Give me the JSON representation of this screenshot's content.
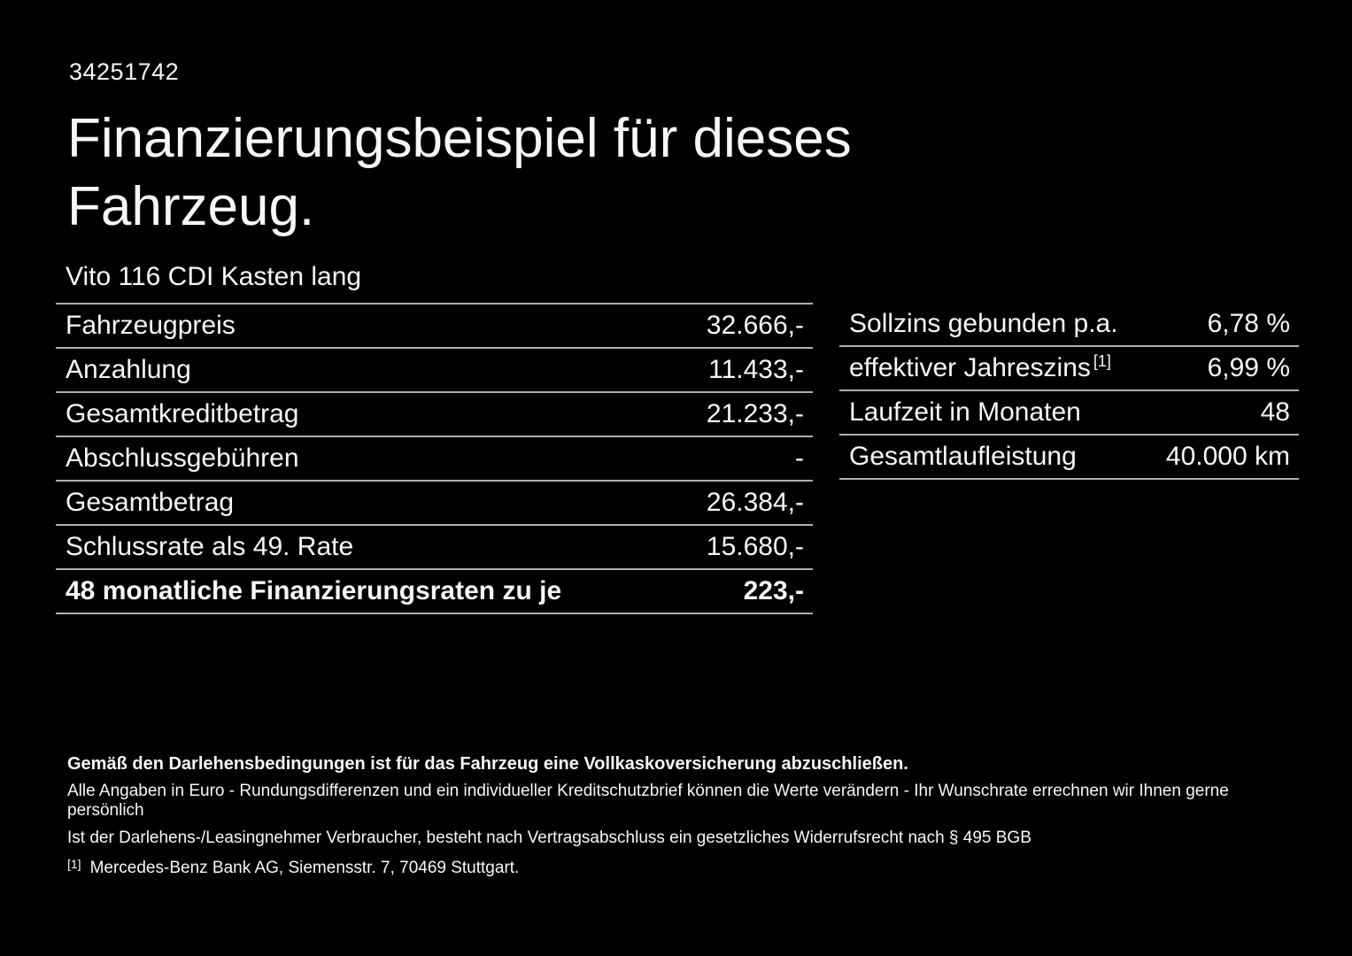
{
  "doc_id": "34251742",
  "title": {
    "line1": "Finanzierungsbeispiel für dieses",
    "line2": "Fahrzeug."
  },
  "vehicle_name": "Vito 116 CDI Kasten lang",
  "finance_table": {
    "rows": [
      {
        "label": "Fahrzeugpreis",
        "value": "32.666,-"
      },
      {
        "label": "Anzahlung",
        "value": "11.433,-"
      },
      {
        "label": "Gesamtkreditbetrag",
        "value": "21.233,-"
      },
      {
        "label": "Abschlussgebühren",
        "value": "-"
      },
      {
        "label": "Gesamtbetrag",
        "value": "26.384,-"
      },
      {
        "label": "Schlussrate als 49. Rate",
        "value": "15.680,-"
      },
      {
        "label": "48 monatliche Finanzierungsraten zu je",
        "value": "223,-"
      }
    ]
  },
  "terms_table": {
    "rows": [
      {
        "label": "Sollzins gebunden p.a.",
        "sup": "",
        "value": "6,78 %"
      },
      {
        "label": "effektiver Jahreszins",
        "sup": "[1]",
        "value": "6,99 %"
      },
      {
        "label": "Laufzeit in Monaten",
        "sup": "",
        "value": "48"
      },
      {
        "label": "Gesamtlaufleistung",
        "sup": "",
        "value": "40.000 km"
      }
    ]
  },
  "footer": {
    "line1": "Gemäß den Darlehensbedingungen ist für das Fahrzeug eine Vollkaskoversicherung abzuschließen.",
    "line2": "Alle Angaben in Euro - Rundungsdifferenzen und ein individueller Kreditschutzbrief können die Werte verändern - Ihr Wunschrate errechnen wir Ihnen gerne persönlich",
    "line3": "Ist der Darlehens-/Leasingnehmer Verbraucher, besteht nach Vertragsabschluss ein gesetzliches Widerrufsrecht nach § 495 BGB",
    "footnote_marker": "[1]",
    "footnote_text": "Mercedes-Benz Bank AG, Siemensstr. 7, 70469 Stuttgart."
  },
  "colors": {
    "background": "#000000",
    "text": "#f7f7f7",
    "divider": "#b0b0b0"
  }
}
